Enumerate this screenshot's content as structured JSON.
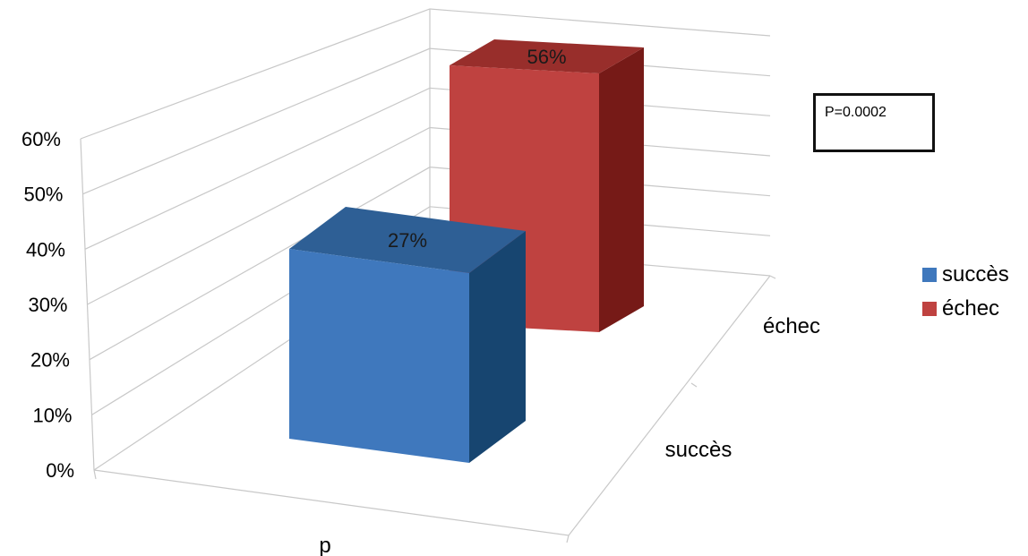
{
  "chart_data": {
    "type": "bar",
    "style": "3d-column",
    "categories": [
      "p"
    ],
    "depth_categories": [
      "succès",
      "échec"
    ],
    "series": [
      {
        "name": "succès",
        "values": [
          27
        ],
        "color": "#3f78bd",
        "label": "27%"
      },
      {
        "name": "échec",
        "values": [
          56
        ],
        "color": "#bf4240",
        "label": "56%"
      }
    ],
    "ylim": [
      0,
      60
    ],
    "yticks": [
      "0%",
      "10%",
      "20%",
      "30%",
      "40%",
      "50%",
      "60%"
    ],
    "grid": true,
    "legend": "right",
    "annotation": "P=0.0002"
  }
}
